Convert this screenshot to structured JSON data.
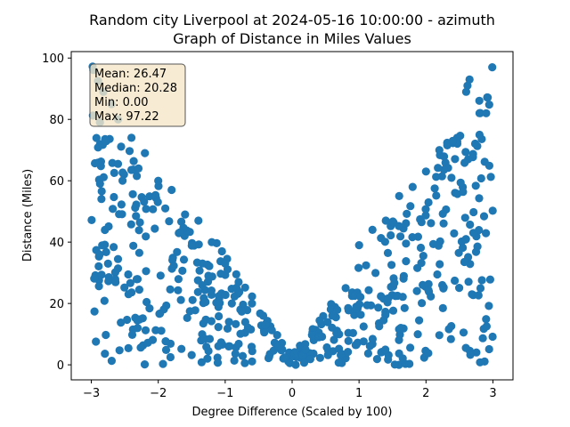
{
  "chart_data": {
    "type": "scatter",
    "title_line1": "Random city Liverpool at 2024-05-16 10:00:00  - azimuth",
    "title_line2": "Graph of Distance in Miles Values",
    "xlabel": "Degree Difference (Scaled by 100)",
    "ylabel": "Distance (Miles)",
    "xlim": [
      -3.3,
      3.3
    ],
    "ylim": [
      -4.9,
      102.1
    ],
    "xticks": [
      -3,
      -2,
      -1,
      0,
      1,
      2,
      3
    ],
    "xtick_labels": [
      "−3",
      "−2",
      "−1",
      "0",
      "1",
      "2",
      "3"
    ],
    "yticks": [
      0,
      20,
      40,
      60,
      80,
      100
    ],
    "ytick_labels": [
      "0",
      "20",
      "40",
      "60",
      "80",
      "100"
    ],
    "marker_color": "#1f77b4",
    "stats": {
      "mean": "Mean: 26.47",
      "median": "Median: 20.28",
      "min": "Min: 0.00",
      "max": "Max: 97.22"
    },
    "stats_box_fill": "#f5e6c8",
    "points": []
  }
}
